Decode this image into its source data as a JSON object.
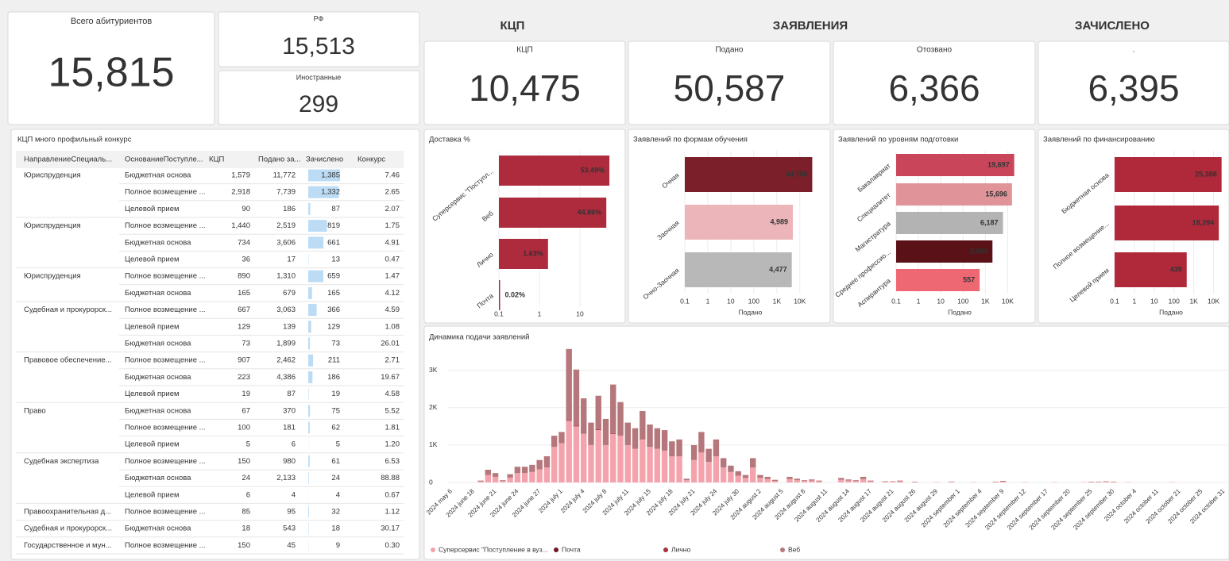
{
  "kpis": {
    "total": {
      "label": "Всего абитуриентов",
      "value": "15,815"
    },
    "rf": {
      "label": "РФ",
      "value": "15,513"
    },
    "foreign": {
      "label": "Иностранные",
      "value": "299"
    }
  },
  "sections": [
    "КЦП",
    "ЗАЯВЛЕНИЯ",
    "ЗАЧИСЛЕНО"
  ],
  "cards": [
    {
      "label": "КЦП",
      "value": "10,475"
    },
    {
      "label": "Подано",
      "value": "50,587"
    },
    {
      "label": "Отозвано",
      "value": "6,366"
    },
    {
      "label": ".",
      "value": "6,395"
    }
  ],
  "table": {
    "title": "КЦП много профильный конкурс",
    "columns": [
      "НаправлениеСпециаль...",
      "ОснованиеПоступле...",
      "КЦП",
      "Подано за...",
      "Зачислено",
      "Конкурс"
    ],
    "rows": [
      [
        "Юриспруденция",
        "Бюджетная основа",
        "1,579",
        "11,772",
        {
          "value": 1385,
          "label": "1,385"
        },
        "7.46"
      ],
      [
        null,
        "Полное возмещение ...",
        "2,918",
        "7,739",
        {
          "value": 1332,
          "label": "1,332"
        },
        "2.65"
      ],
      [
        null,
        "Целевой прием",
        "90",
        "186",
        {
          "value": 87,
          "label": "87"
        },
        "2.07"
      ],
      [
        "Юриспруденция",
        "Полное возмещение ...",
        "1,440",
        "2,519",
        {
          "value": 819,
          "label": "819"
        },
        "1.75"
      ],
      [
        null,
        "Бюджетная основа",
        "734",
        "3,606",
        {
          "value": 661,
          "label": "661"
        },
        "4.91"
      ],
      [
        null,
        "Целевой прием",
        "36",
        "17",
        {
          "value": 13,
          "label": "13"
        },
        "0.47"
      ],
      [
        "Юриспруденция",
        "Полное возмещение ...",
        "890",
        "1,310",
        {
          "value": 659,
          "label": "659"
        },
        "1.47"
      ],
      [
        null,
        "Бюджетная основа",
        "165",
        "679",
        {
          "value": 165,
          "label": "165"
        },
        "4.12"
      ],
      [
        "Судебная и прокурорск...",
        "Полное возмещение ...",
        "667",
        "3,063",
        {
          "value": 366,
          "label": "366"
        },
        "4.59"
      ],
      [
        null,
        "Целевой прием",
        "129",
        "139",
        {
          "value": 129,
          "label": "129"
        },
        "1.08"
      ],
      [
        null,
        "Бюджетная основа",
        "73",
        "1,899",
        {
          "value": 73,
          "label": "73"
        },
        "26.01"
      ],
      [
        "Правовое обеспечение...",
        "Полное возмещение ...",
        "907",
        "2,462",
        {
          "value": 211,
          "label": "211"
        },
        "2.71"
      ],
      [
        null,
        "Бюджетная основа",
        "223",
        "4,386",
        {
          "value": 186,
          "label": "186"
        },
        "19.67"
      ],
      [
        null,
        "Целевой прием",
        "19",
        "87",
        {
          "value": 19,
          "label": "19"
        },
        "4.58"
      ],
      [
        "Право",
        "Бюджетная основа",
        "67",
        "370",
        {
          "value": 75,
          "label": "75"
        },
        "5.52"
      ],
      [
        null,
        "Полное возмещение ...",
        "100",
        "181",
        {
          "value": 62,
          "label": "62"
        },
        "1.81"
      ],
      [
        null,
        "Целевой прием",
        "5",
        "6",
        {
          "value": 5,
          "label": "5"
        },
        "1.20"
      ],
      [
        "Судебная экспертиза",
        "Полное возмещение ...",
        "150",
        "980",
        {
          "value": 61,
          "label": "61"
        },
        "6.53"
      ],
      [
        null,
        "Бюджетная основа",
        "24",
        "2,133",
        {
          "value": 24,
          "label": "24"
        },
        "88.88"
      ],
      [
        null,
        "Целевой прием",
        "6",
        "4",
        {
          "value": 4,
          "label": "4"
        },
        "0.67"
      ],
      [
        "Правоохранительная д...",
        "Полное возмещение ...",
        "85",
        "95",
        {
          "value": 32,
          "label": "32"
        },
        "1.12"
      ],
      [
        "Судебная и прокурорск...",
        "Бюджетная основа",
        "18",
        "543",
        {
          "value": 18,
          "label": "18"
        },
        "30.17"
      ],
      [
        "Государственное и мун...",
        "Полное возмещение ...",
        "150",
        "45",
        {
          "value": 9,
          "label": "9"
        },
        "0.30"
      ]
    ]
  },
  "chart_data": [
    {
      "type": "hbar",
      "title": "Доставка %",
      "log_x": true,
      "categories": [
        "Суперсервис \"Поступл...",
        "Веб",
        "Лично",
        "Почта"
      ],
      "values": [
        53.49,
        44.86,
        1.63,
        0.02
      ],
      "value_labels": [
        "53.49%",
        "44.86%",
        "1.63%",
        "0.02%"
      ],
      "color": "#ad2b3d",
      "xlim": [
        0.1,
        80
      ],
      "xticks": [
        0.1,
        1,
        10
      ],
      "grid": true
    },
    {
      "type": "hbar",
      "title": "Заявлений по формам обучения",
      "log_x": true,
      "xlabel": "Подано",
      "categories": [
        "Очная",
        "Заочная",
        "Очно-Заочная"
      ],
      "values": [
        34755,
        4989,
        4477
      ],
      "value_labels": [
        "34,755",
        "4,989",
        "4,477"
      ],
      "colors": [
        "#7b1f2b",
        "#ebb5ba",
        "#b8b8b8"
      ],
      "xlim": [
        0.1,
        50000
      ],
      "xticks": [
        0.1,
        1,
        10,
        100,
        {
          "value": 1000,
          "label": "1K"
        },
        {
          "value": 10000,
          "label": "10K"
        }
      ],
      "grid": true
    },
    {
      "type": "hbar",
      "title": "Заявлений по уровням подготовки",
      "log_x": true,
      "xlabel": "Подано",
      "categories": [
        "Бакалавриат",
        "Специалитет",
        "Магистратура",
        "Среднее профессио...",
        "Аспирантура"
      ],
      "values": [
        19697,
        15696,
        6187,
        2084,
        557
      ],
      "value_labels": [
        "19,697",
        "15,696",
        "6,187",
        "2,084",
        "557"
      ],
      "colors": [
        "#c9465a",
        "#e09499",
        "#b3b3b3",
        "#5a1218",
        "#ee6873"
      ],
      "xlim": [
        0.1,
        50000
      ],
      "xticks": [
        0.1,
        1,
        10,
        100,
        {
          "value": 1000,
          "label": "1K"
        },
        {
          "value": 10000,
          "label": "10K"
        }
      ],
      "grid": true
    },
    {
      "type": "hbar",
      "title": "Заявлений по финансированию",
      "log_x": true,
      "xlabel": "Подано",
      "categories": [
        "Бюджетная основа",
        "Полное возмещение...",
        "Целевой прием"
      ],
      "values": [
        25388,
        18394,
        439
      ],
      "value_labels": [
        "25,388",
        "18,394",
        "439"
      ],
      "color": "#b0293b",
      "xlim": [
        0.1,
        50000
      ],
      "xticks": [
        0.1,
        1,
        10,
        100,
        {
          "value": 1000,
          "label": "1K"
        },
        {
          "value": 10000,
          "label": "10K"
        }
      ],
      "grid": true
    },
    {
      "type": "stacked",
      "title": "Динамика подачи заявлений",
      "ylim": [
        0,
        3800
      ],
      "yticks": [
        0,
        {
          "value": 1000,
          "label": "1K"
        },
        {
          "value": 2000,
          "label": "2K"
        },
        {
          "value": 3000,
          "label": "3K"
        }
      ],
      "grid": true,
      "categories": [
        "2024 may 6",
        null,
        null,
        "2024 june 18",
        null,
        null,
        "2024 june 21",
        null,
        null,
        "2024 june 24",
        null,
        null,
        "2024 june 27",
        null,
        null,
        "2024 july 1",
        null,
        null,
        "2024 july 4",
        null,
        null,
        "2024 july 8",
        null,
        null,
        "2024 july 11",
        null,
        null,
        "2024 july 15",
        null,
        null,
        "2024 july 18",
        null,
        null,
        "2024 july 21",
        null,
        null,
        "2024 july 24",
        null,
        null,
        "2024 july 30",
        null,
        null,
        "2024 august 2",
        null,
        null,
        "2024 august 5",
        null,
        null,
        "2024 august 8",
        null,
        null,
        "2024 august 11",
        null,
        null,
        "2024 august 14",
        null,
        null,
        "2024 august 17",
        null,
        null,
        "2024 august 21",
        null,
        null,
        "2024 august 26",
        null,
        null,
        "2024 august 29",
        null,
        null,
        "2024 september 1",
        null,
        null,
        "2024 september 4",
        null,
        null,
        "2024 september 9",
        null,
        null,
        "2024 september 12",
        null,
        null,
        "2024 september 17",
        null,
        null,
        "2024 september 20",
        null,
        null,
        "2024 september 25",
        null,
        null,
        "2024 september 30",
        null,
        null,
        "2024 october 4",
        null,
        null,
        "2024 october 11",
        null,
        null,
        "2024 october 21",
        null,
        null,
        "2024 october 25",
        null,
        null,
        "2024 october 31"
      ],
      "series": [
        {
          "name": "Суперсервис \"Поступление в вуз...",
          "color": "#f4a3ac",
          "values": [
            0,
            0,
            0,
            0,
            30,
            200,
            150,
            40,
            130,
            250,
            250,
            280,
            350,
            400,
            950,
            1050,
            1650,
            1500,
            1300,
            1000,
            1400,
            1000,
            1300,
            1250,
            1000,
            900,
            1150,
            950,
            900,
            850,
            700,
            700,
            60,
            600,
            800,
            550,
            700,
            400,
            280,
            180,
            120,
            400,
            120,
            90,
            40,
            0,
            90,
            60,
            40,
            50,
            30,
            0,
            0,
            70,
            50,
            40,
            90,
            30,
            0,
            20,
            20,
            30,
            0,
            10,
            0,
            0,
            10,
            0,
            10,
            0,
            0,
            10,
            0,
            0,
            10,
            20,
            0,
            0,
            10,
            0,
            0,
            0,
            10,
            0,
            0,
            0,
            10,
            10,
            10,
            20,
            10,
            0,
            10,
            0,
            0,
            0,
            0,
            0,
            10,
            0,
            0,
            0,
            0,
            0,
            0,
            0
          ]
        },
        {
          "name": "Почта",
          "color": "#6d1a24",
          "values": [
            0,
            0,
            0,
            0,
            0,
            0,
            0,
            0,
            0,
            0,
            0,
            0,
            0,
            0,
            0,
            0,
            0,
            0,
            0,
            0,
            0,
            0,
            0,
            0,
            0,
            0,
            0,
            0,
            0,
            0,
            0,
            0,
            0,
            0,
            0,
            0,
            0,
            0,
            0,
            0,
            0,
            0,
            0,
            0,
            0,
            0,
            0,
            0,
            0,
            0,
            0,
            0,
            0,
            0,
            0,
            0,
            0,
            0,
            0,
            0,
            0,
            0,
            0,
            0,
            0,
            0,
            0,
            0,
            0,
            0,
            0,
            0,
            0,
            0,
            0,
            0,
            0,
            0,
            0,
            0,
            0,
            0,
            0,
            0,
            0,
            0,
            0,
            0,
            0,
            0,
            0,
            0,
            0,
            0,
            0,
            0,
            0,
            0,
            0,
            0,
            0,
            0,
            0,
            0,
            0,
            0
          ]
        },
        {
          "name": "Лично",
          "color": "#a8303c",
          "values": [
            0,
            0,
            0,
            0,
            0,
            0,
            0,
            0,
            0,
            0,
            0,
            0,
            0,
            0,
            0,
            0,
            20,
            20,
            0,
            0,
            20,
            0,
            20,
            0,
            0,
            0,
            10,
            0,
            0,
            0,
            0,
            0,
            0,
            0,
            0,
            0,
            0,
            0,
            0,
            0,
            0,
            0,
            0,
            0,
            0,
            0,
            0,
            0,
            0,
            0,
            0,
            0,
            0,
            0,
            0,
            0,
            0,
            0,
            0,
            0,
            0,
            0,
            0,
            0,
            0,
            0,
            0,
            0,
            0,
            0,
            0,
            0,
            0,
            0,
            0,
            0,
            0,
            0,
            0,
            0,
            0,
            0,
            0,
            0,
            0,
            0,
            0,
            0,
            0,
            0,
            0,
            0,
            0,
            0,
            0,
            0,
            0,
            0,
            0,
            0,
            0,
            0,
            0,
            0,
            0,
            0
          ]
        },
        {
          "name": "Веб",
          "color": "#b5777b",
          "values": [
            0,
            0,
            0,
            0,
            20,
            140,
            100,
            20,
            90,
            170,
            170,
            190,
            250,
            300,
            300,
            300,
            1900,
            1500,
            950,
            600,
            900,
            700,
            1300,
            900,
            600,
            550,
            750,
            600,
            550,
            550,
            400,
            450,
            40,
            400,
            550,
            350,
            450,
            250,
            170,
            120,
            80,
            250,
            80,
            60,
            30,
            0,
            60,
            40,
            20,
            30,
            20,
            0,
            0,
            50,
            30,
            20,
            60,
            20,
            0,
            10,
            10,
            20,
            0,
            10,
            0,
            0,
            0,
            0,
            10,
            0,
            0,
            0,
            0,
            0,
            10,
            20,
            0,
            0,
            0,
            0,
            0,
            0,
            0,
            0,
            0,
            0,
            0,
            10,
            10,
            10,
            10,
            0,
            0,
            0,
            0,
            0,
            0,
            0,
            0,
            0,
            0,
            0,
            0,
            0,
            0,
            0
          ]
        }
      ]
    }
  ]
}
